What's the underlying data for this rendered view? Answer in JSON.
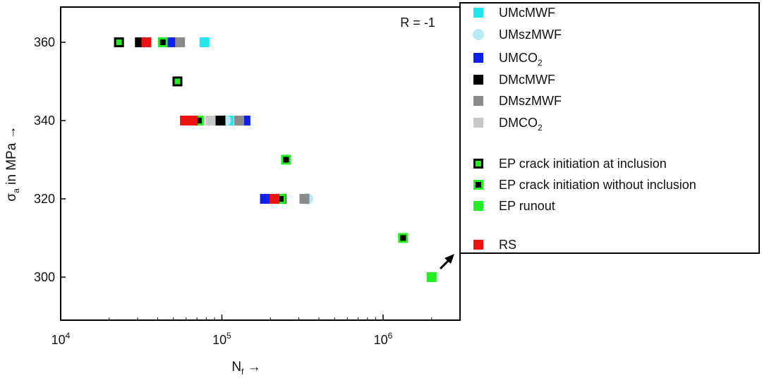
{
  "chart_data": {
    "type": "scatter",
    "annotation": "R = -1",
    "xlabel": {
      "main": "N",
      "sub": "f",
      "arrow": "→"
    },
    "ylabel": {
      "main": "σ",
      "sub": "a",
      "rest": " in MPa →"
    },
    "x_scale": "log",
    "xlim": [
      10000,
      3000000
    ],
    "ylim": [
      289,
      369
    ],
    "x_ticks": [
      {
        "value": 10000,
        "base": "10",
        "exp": "4"
      },
      {
        "value": 100000,
        "base": "10",
        "exp": "5"
      },
      {
        "value": 1000000,
        "base": "10",
        "exp": "6"
      }
    ],
    "y_ticks": [
      300,
      320,
      340,
      360
    ],
    "grid": false,
    "legend_position": "right, outside plot",
    "legend": [
      {
        "key": "UMcMWF",
        "text": "UMcMWF",
        "sub": ""
      },
      {
        "key": "UMszMWF",
        "text": "UMszMWF",
        "sub": ""
      },
      {
        "key": "UMCO2",
        "text": "UMCO",
        "sub": "2"
      },
      {
        "key": "DMcMWF",
        "text": "DMcMWF",
        "sub": ""
      },
      {
        "key": "DMszMWF",
        "text": "DMszMWF",
        "sub": ""
      },
      {
        "key": "DMCO2",
        "text": "DMCO",
        "sub": "2"
      },
      {
        "key": "EP_incl",
        "text": "EP crack initiation at inclusion",
        "sub": ""
      },
      {
        "key": "EP_noincl",
        "text": "EP crack initiation without inclusion",
        "sub": ""
      },
      {
        "key": "EP_runout",
        "text": "EP runout",
        "sub": ""
      },
      {
        "key": "RS",
        "text": "RS",
        "sub": ""
      }
    ],
    "styles": {
      "UMcMWF": {
        "shape": "square",
        "fill": "#22e6ee"
      },
      "UMszMWF": {
        "shape": "circle",
        "fill": "#b9e8f8"
      },
      "UMCO2": {
        "shape": "square",
        "fill": "#1020e8"
      },
      "DMcMWF": {
        "shape": "square",
        "fill": "#000000"
      },
      "DMszMWF": {
        "shape": "square",
        "fill": "#8a8a8a"
      },
      "DMCO2": {
        "shape": "square",
        "fill": "#c8c8c8"
      },
      "EP_incl": {
        "shape": "square-ring",
        "outer": "#000000",
        "inner": "#22ee22"
      },
      "EP_noincl": {
        "shape": "square-ring",
        "outer": "#22ee22",
        "inner": "#000000"
      },
      "EP_runout": {
        "shape": "square",
        "fill": "#22ee22"
      },
      "RS": {
        "shape": "square",
        "fill": "#ee1111"
      }
    },
    "series": [
      {
        "key": "UMcMWF",
        "points": [
          [
            78000,
            360
          ],
          [
            110000,
            340
          ]
        ]
      },
      {
        "key": "UMszMWF",
        "points": [
          [
            105000,
            340
          ],
          [
            340000,
            320
          ]
        ]
      },
      {
        "key": "UMCO2",
        "points": [
          [
            48000,
            360
          ],
          [
            140000,
            340
          ],
          [
            185000,
            320
          ]
        ]
      },
      {
        "key": "DMcMWF",
        "points": [
          [
            31000,
            360
          ],
          [
            98000,
            340
          ],
          [
            234000,
            320
          ]
        ]
      },
      {
        "key": "DMszMWF",
        "points": [
          [
            55000,
            360
          ],
          [
            128000,
            340
          ],
          [
            325000,
            320
          ]
        ]
      },
      {
        "key": "DMCO2",
        "points": [
          [
            85000,
            340
          ]
        ]
      },
      {
        "key": "EP_incl",
        "points": [
          [
            23000,
            360
          ],
          [
            53000,
            350
          ]
        ]
      },
      {
        "key": "EP_noincl",
        "points": [
          [
            43000,
            360
          ],
          [
            72000,
            340
          ],
          [
            250000,
            330
          ],
          [
            232000,
            320
          ],
          [
            1330000,
            310
          ]
        ]
      },
      {
        "key": "EP_runout",
        "points": [
          [
            2000000,
            300
          ]
        ]
      },
      {
        "key": "RS",
        "points": [
          [
            34000,
            360
          ],
          [
            59000,
            340
          ],
          [
            66000,
            340
          ],
          [
            212000,
            320
          ]
        ]
      }
    ]
  }
}
